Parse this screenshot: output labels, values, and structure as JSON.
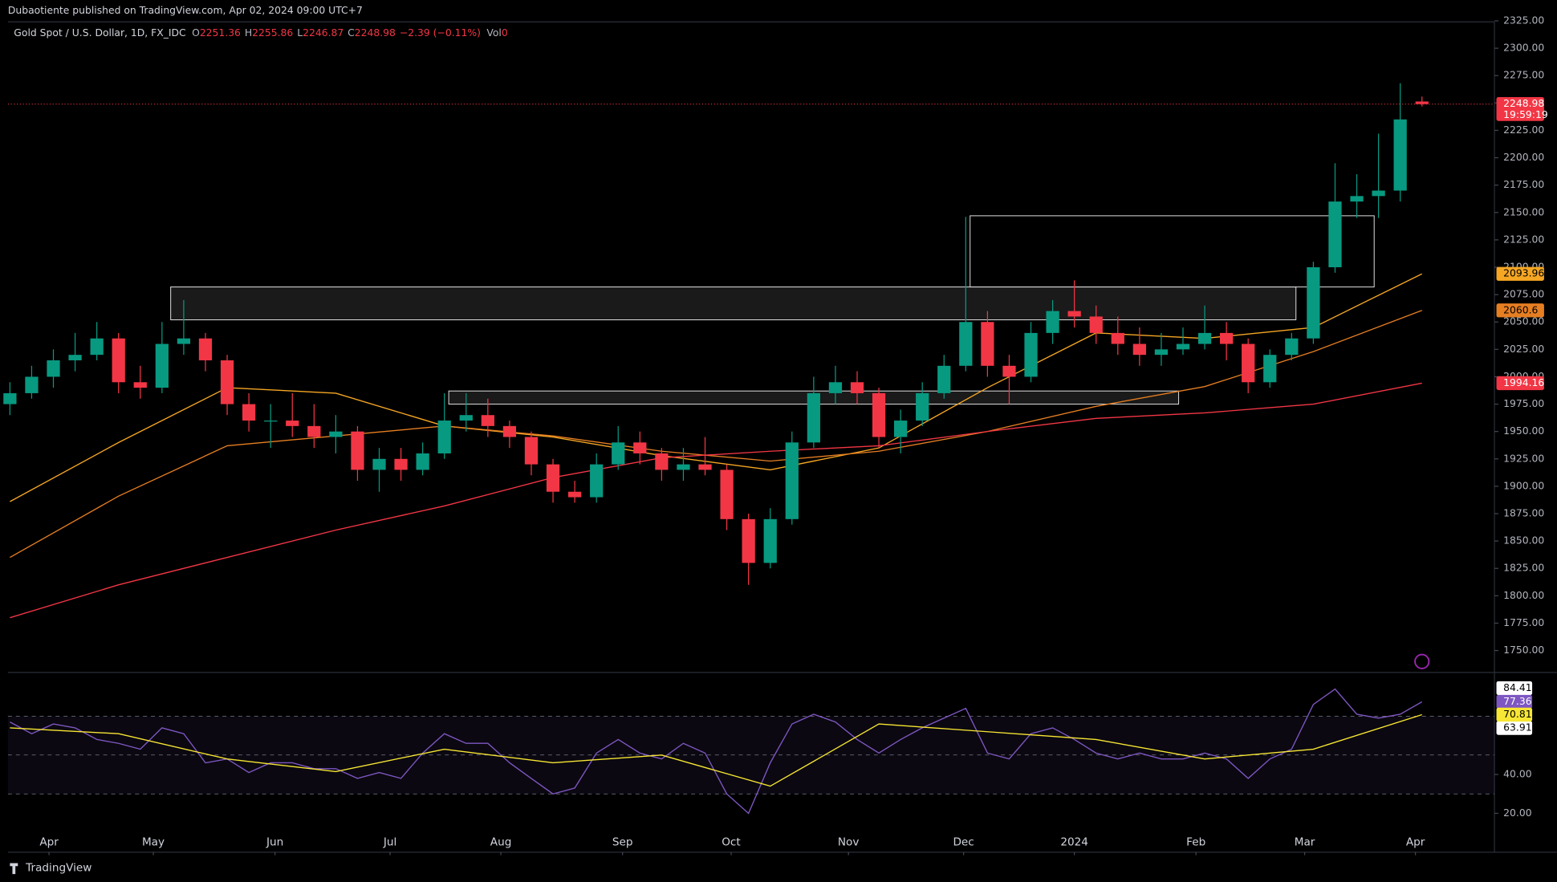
{
  "header": {
    "publisher": "Dubaotiente published on TradingView.com, Apr 02, 2024 09:00 UTC+7",
    "footer": "TradingView"
  },
  "chart_data": [
    {
      "type": "candlestick",
      "title": "Gold Spot / U.S. Dollar, 1D, FX_IDC",
      "ohlc_labels": [
        "O",
        "H",
        "L",
        "C"
      ],
      "change": "−2.39 (−0.11%)",
      "volume_label": "Vol",
      "volume": 0,
      "countdown": "19:59:19",
      "up_color": "#089981",
      "down_color": "#f23645",
      "xlim": [
        0,
        65
      ],
      "xticks": [
        {
          "value": 1.8,
          "label": "Apr"
        },
        {
          "value": 6.6,
          "label": "May"
        },
        {
          "value": 12.2,
          "label": "Jun"
        },
        {
          "value": 17.5,
          "label": "Jul"
        },
        {
          "value": 22.6,
          "label": "Aug"
        },
        {
          "value": 28.2,
          "label": "Sep"
        },
        {
          "value": 33.2,
          "label": "Oct"
        },
        {
          "value": 38.6,
          "label": "Nov"
        },
        {
          "value": 43.9,
          "label": "Dec"
        },
        {
          "value": 49.0,
          "label": "2024"
        },
        {
          "value": 54.6,
          "label": "Feb"
        },
        {
          "value": 59.6,
          "label": "Mar"
        },
        {
          "value": 64.7,
          "label": "Apr"
        }
      ],
      "ylim": [
        1730,
        2325
      ],
      "yticks": [
        {
          "value": 1750,
          "label": "1750.00"
        },
        {
          "value": 1775,
          "label": "1775.00"
        },
        {
          "value": 1800,
          "label": "1800.00"
        },
        {
          "value": 1825,
          "label": "1825.00"
        },
        {
          "value": 1850,
          "label": "1850.00"
        },
        {
          "value": 1875,
          "label": "1875.00"
        },
        {
          "value": 1900,
          "label": "1900.00"
        },
        {
          "value": 1925,
          "label": "1925.00"
        },
        {
          "value": 1950,
          "label": "1950.00"
        },
        {
          "value": 1975,
          "label": "1975.00"
        },
        {
          "value": 2000,
          "label": "2000.00"
        },
        {
          "value": 2025,
          "label": "2025.00"
        },
        {
          "value": 2050,
          "label": "2050.00"
        },
        {
          "value": 2075,
          "label": "2075.00"
        },
        {
          "value": 2100,
          "label": "2100.00"
        },
        {
          "value": 2125,
          "label": "2125.00"
        },
        {
          "value": 2150,
          "label": "2150.00"
        },
        {
          "value": 2175,
          "label": "2175.00"
        },
        {
          "value": 2200,
          "label": "2200.00"
        },
        {
          "value": 2225,
          "label": "2225.00"
        },
        {
          "value": 2250,
          "label": "2250.00"
        },
        {
          "value": 2275,
          "label": "2275.00"
        },
        {
          "value": 2300,
          "label": "2300.00"
        },
        {
          "value": 2325,
          "label": "2325.00"
        }
      ],
      "candles": [
        [
          1975,
          1995,
          1965,
          1985
        ],
        [
          1985,
          2010,
          1980,
          2000
        ],
        [
          2000,
          2025,
          1990,
          2015
        ],
        [
          2015,
          2040,
          2005,
          2020
        ],
        [
          2020,
          2050,
          2015,
          2035
        ],
        [
          2035,
          2040,
          1985,
          1995
        ],
        [
          1995,
          2010,
          1980,
          1990
        ],
        [
          1990,
          2050,
          1985,
          2030
        ],
        [
          2030,
          2070,
          2020,
          2035
        ],
        [
          2035,
          2040,
          2005,
          2015
        ],
        [
          2015,
          2020,
          1965,
          1975
        ],
        [
          1975,
          1985,
          1950,
          1960
        ],
        [
          1960,
          1975,
          1935,
          1960
        ],
        [
          1960,
          1985,
          1945,
          1955
        ],
        [
          1955,
          1975,
          1935,
          1945
        ],
        [
          1945,
          1965,
          1930,
          1950
        ],
        [
          1950,
          1955,
          1905,
          1915
        ],
        [
          1915,
          1935,
          1895,
          1925
        ],
        [
          1925,
          1935,
          1905,
          1915
        ],
        [
          1915,
          1940,
          1910,
          1930
        ],
        [
          1930,
          1985,
          1925,
          1960
        ],
        [
          1960,
          1985,
          1950,
          1965
        ],
        [
          1965,
          1980,
          1945,
          1955
        ],
        [
          1955,
          1960,
          1935,
          1945
        ],
        [
          1945,
          1950,
          1910,
          1920
        ],
        [
          1920,
          1925,
          1885,
          1895
        ],
        [
          1895,
          1905,
          1885,
          1890
        ],
        [
          1890,
          1930,
          1885,
          1920
        ],
        [
          1920,
          1955,
          1915,
          1940
        ],
        [
          1940,
          1950,
          1920,
          1930
        ],
        [
          1930,
          1935,
          1905,
          1915
        ],
        [
          1915,
          1935,
          1905,
          1920
        ],
        [
          1920,
          1945,
          1910,
          1915
        ],
        [
          1915,
          1920,
          1860,
          1870
        ],
        [
          1870,
          1875,
          1810,
          1830
        ],
        [
          1830,
          1880,
          1825,
          1870
        ],
        [
          1870,
          1950,
          1865,
          1940
        ],
        [
          1940,
          2000,
          1935,
          1985
        ],
        [
          1985,
          2010,
          1975,
          1995
        ],
        [
          1995,
          2005,
          1975,
          1985
        ],
        [
          1985,
          1990,
          1935,
          1945
        ],
        [
          1945,
          1970,
          1930,
          1960
        ],
        [
          1960,
          1995,
          1955,
          1985
        ],
        [
          1985,
          2020,
          1980,
          2010
        ],
        [
          2010,
          2146,
          2005,
          2050
        ],
        [
          2050,
          2060,
          2000,
          2010
        ],
        [
          2010,
          2020,
          1975,
          2000
        ],
        [
          2000,
          2050,
          1995,
          2040
        ],
        [
          2040,
          2070,
          2030,
          2060
        ],
        [
          2060,
          2088,
          2045,
          2055
        ],
        [
          2055,
          2065,
          2030,
          2040
        ],
        [
          2040,
          2055,
          2020,
          2030
        ],
        [
          2030,
          2045,
          2010,
          2020
        ],
        [
          2020,
          2040,
          2010,
          2025
        ],
        [
          2025,
          2045,
          2020,
          2030
        ],
        [
          2030,
          2065,
          2025,
          2040
        ],
        [
          2040,
          2050,
          2015,
          2030
        ],
        [
          2030,
          2035,
          1985,
          1995
        ],
        [
          1995,
          2025,
          1990,
          2020
        ],
        [
          2020,
          2040,
          2015,
          2035
        ],
        [
          2035,
          2105,
          2030,
          2100
        ],
        [
          2100,
          2195,
          2095,
          2160
        ],
        [
          2160,
          2185,
          2145,
          2165
        ],
        [
          2165,
          2222,
          2145,
          2170
        ],
        [
          2170,
          2268,
          2160,
          2235
        ],
        [
          2251.36,
          2255.86,
          2246.87,
          2248.98
        ]
      ],
      "series": [
        {
          "color": "#f5a623",
          "x": [
            0,
            5,
            10,
            15,
            20,
            25,
            30,
            35,
            40,
            45,
            50,
            55,
            60,
            65
          ],
          "values": [
            1886,
            1940,
            1990,
            1985,
            1955,
            1945,
            1928,
            1915,
            1935,
            1990,
            2040,
            2035,
            2045,
            2093.96
          ]
        },
        {
          "color": "#e67e22",
          "x": [
            0,
            5,
            10,
            15,
            20,
            25,
            30,
            35,
            40,
            45,
            50,
            55,
            60,
            65
          ],
          "values": [
            1835,
            1891,
            1937,
            1946,
            1955,
            1946,
            1932,
            1923,
            1932,
            1950,
            1973,
            1991,
            2023,
            2060.6
          ]
        },
        {
          "color": "#f23645",
          "x": [
            0,
            5,
            10,
            15,
            20,
            25,
            30,
            35,
            40,
            45,
            50,
            55,
            60,
            65
          ],
          "values": [
            1780,
            1810,
            1835,
            1860,
            1882,
            1908,
            1926,
            1932,
            1937,
            1950,
            1962,
            1967,
            1975,
            1994.16
          ]
        }
      ],
      "zones": [
        {
          "x": [
            7.4,
            59.2
          ],
          "y": [
            2052,
            2082
          ]
        },
        {
          "x": [
            20.2,
            53.8
          ],
          "y": [
            1975,
            1987
          ]
        },
        {
          "x": [
            44.2,
            62.8
          ],
          "y": [
            2082,
            2147
          ]
        }
      ]
    },
    {
      "type": "line",
      "ylim": [
        0,
        92
      ],
      "yticks": [
        {
          "value": 20,
          "label": "20.00"
        },
        {
          "value": 40,
          "label": "40.00"
        }
      ],
      "levels": [
        70,
        50,
        30
      ],
      "bands": [
        84.41,
        63.91
      ],
      "series": [
        {
          "color": "#7e57c2",
          "values": [
            67,
            61,
            66,
            64,
            58,
            56,
            53,
            64,
            61,
            46,
            48,
            41,
            46,
            46,
            43,
            43,
            38,
            41,
            38,
            51,
            61,
            56,
            56,
            46,
            38,
            30,
            33,
            51,
            58,
            51,
            48,
            56,
            51,
            30,
            20,
            46,
            66,
            71,
            67,
            58,
            51,
            58,
            64,
            69,
            74,
            51,
            48,
            61,
            64,
            58,
            51,
            48,
            51,
            48,
            48,
            51,
            48,
            38,
            48,
            53,
            76,
            84,
            71,
            69,
            71,
            77.36
          ]
        },
        {
          "color": "#f7e633",
          "x": [
            0,
            5,
            10,
            15,
            20,
            25,
            30,
            35,
            40,
            45,
            50,
            55,
            60,
            65
          ],
          "values": [
            64,
            61,
            48,
            41.5,
            53,
            46,
            50,
            34,
            66,
            62,
            58,
            48,
            53,
            70.81
          ]
        }
      ]
    }
  ]
}
